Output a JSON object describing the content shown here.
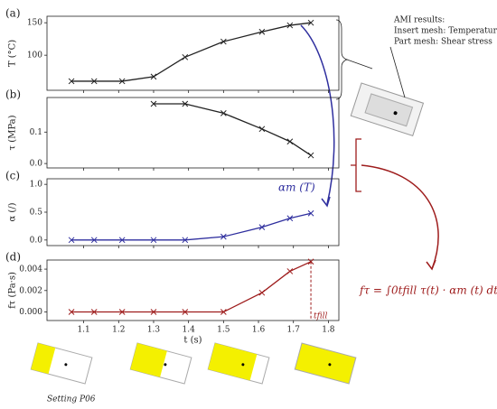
{
  "chart_data": [
    {
      "type": "line",
      "label": "(a)",
      "ylabel": "T (°C)",
      "x": [
        1.065,
        1.13,
        1.21,
        1.3,
        1.39,
        1.5,
        1.61,
        1.69,
        1.75
      ],
      "series": [
        {
          "color": "#222222",
          "values": [
            60,
            60,
            60,
            67,
            97,
            121,
            136,
            146,
            150
          ]
        }
      ],
      "xlim": [
        0.995,
        1.83
      ],
      "ylim": [
        46,
        160
      ],
      "yticks": [
        100,
        150
      ]
    },
    {
      "type": "line",
      "label": "(b)",
      "ylabel": "τ (MPa)",
      "x": [
        1.3,
        1.39,
        1.5,
        1.61,
        1.69,
        1.75
      ],
      "series": [
        {
          "color": "#222222",
          "values": [
            0.19,
            0.19,
            0.16,
            0.11,
            0.07,
            0.026
          ]
        }
      ],
      "xlim": [
        0.995,
        1.83
      ],
      "ylim": [
        -0.014,
        0.21
      ],
      "yticks": [
        {
          "value": 0,
          "label": "0.0"
        },
        0.1
      ]
    },
    {
      "type": "line",
      "label": "(c)",
      "ylabel": "α (/)",
      "x": [
        1.065,
        1.13,
        1.21,
        1.3,
        1.39,
        1.5,
        1.61,
        1.69,
        1.75
      ],
      "series": [
        {
          "color": "#2e2e9e",
          "values": [
            0,
            0,
            0,
            0,
            0,
            0.06,
            0.23,
            0.39,
            0.48
          ]
        }
      ],
      "xlim": [
        0.995,
        1.83
      ],
      "ylim": [
        -0.1,
        1.1
      ],
      "yticks": [
        {
          "value": 0,
          "label": "0.0"
        },
        0.5,
        {
          "value": 1,
          "label": "1.0"
        }
      ]
    },
    {
      "type": "line",
      "label": "(d)",
      "ylabel": "fτ (Pa·s)",
      "xlabel": "t (s)",
      "x": [
        1.065,
        1.13,
        1.21,
        1.3,
        1.39,
        1.5,
        1.61,
        1.69,
        1.75
      ],
      "series": [
        {
          "color": "#9e1c1c",
          "values": [
            0,
            0,
            0,
            0,
            0,
            0,
            0.0018,
            0.0038,
            0.0047
          ]
        }
      ],
      "xlim": [
        0.995,
        1.83
      ],
      "ylim": [
        -0.0008,
        0.00485
      ],
      "yticks": [
        {
          "value": 0,
          "label": "0.000"
        },
        0.002,
        0.004
      ],
      "xticks": [
        1.1,
        1.2,
        1.3,
        1.4,
        1.5,
        1.6,
        1.7,
        1.8
      ]
    }
  ],
  "annotations": {
    "ami": [
      "AMI results:",
      "Insert mesh: Temperature",
      "Part mesh: Shear stress"
    ],
    "alpha": "αm (T)",
    "tfill": "tfill",
    "formula": "fτ = ∫0tfill τ(t) · αm (t) dt",
    "setting": "Setting P06"
  }
}
